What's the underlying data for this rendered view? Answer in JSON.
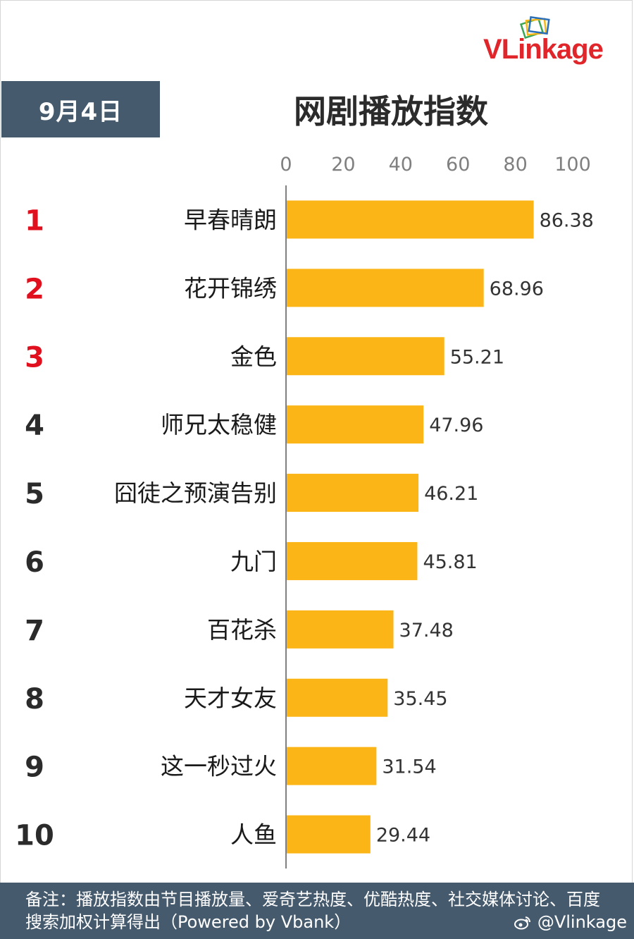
{
  "header": {
    "date": "9月4日",
    "title": "网剧播放指数"
  },
  "logo": {
    "v": "V",
    "l": "L",
    "rest": "inkage",
    "colors": {
      "red": "#e0262b",
      "green": "#3aa655",
      "yellow": "#f5b719",
      "blue": "#2a6fb8"
    }
  },
  "colors": {
    "bar": "#fbb516",
    "panel": "#465a6e",
    "rank_top": "#e0101e",
    "rank_other": "#2b2b2b",
    "axis": "#7f7f7f"
  },
  "chart_data": {
    "type": "bar",
    "orientation": "horizontal",
    "title": "网剧播放指数",
    "categories": [
      "早春晴朗",
      "花开锦绣",
      "金色",
      "师兄太稳健",
      "囧徒之预演告别",
      "九门",
      "百花杀",
      "天才女友",
      "这一秒过火",
      "人鱼"
    ],
    "ranks": [
      "1",
      "2",
      "3",
      "4",
      "5",
      "6",
      "7",
      "8",
      "9",
      "10"
    ],
    "values": [
      86.38,
      68.96,
      55.21,
      47.96,
      46.21,
      45.81,
      37.48,
      35.45,
      31.54,
      29.44
    ],
    "value_labels": [
      "86.38",
      "68.96",
      "55.21",
      "47.96",
      "46.21",
      "45.81",
      "37.48",
      "35.45",
      "31.54",
      "29.44"
    ],
    "xlim": [
      0,
      100
    ],
    "xticks": [
      "0",
      "20",
      "40",
      "60",
      "80",
      "100"
    ],
    "xtick_values": [
      0,
      20,
      40,
      60,
      80,
      100
    ],
    "axis_position": "top",
    "grid": false,
    "legend": "none"
  },
  "footer": {
    "note": "备注：播放指数由节目播放量、爱奇艺热度、优酷热度、社交媒体讨论、百度搜索加权计算得出（Powered by Vbank）",
    "handle": "@Vlinkage"
  }
}
